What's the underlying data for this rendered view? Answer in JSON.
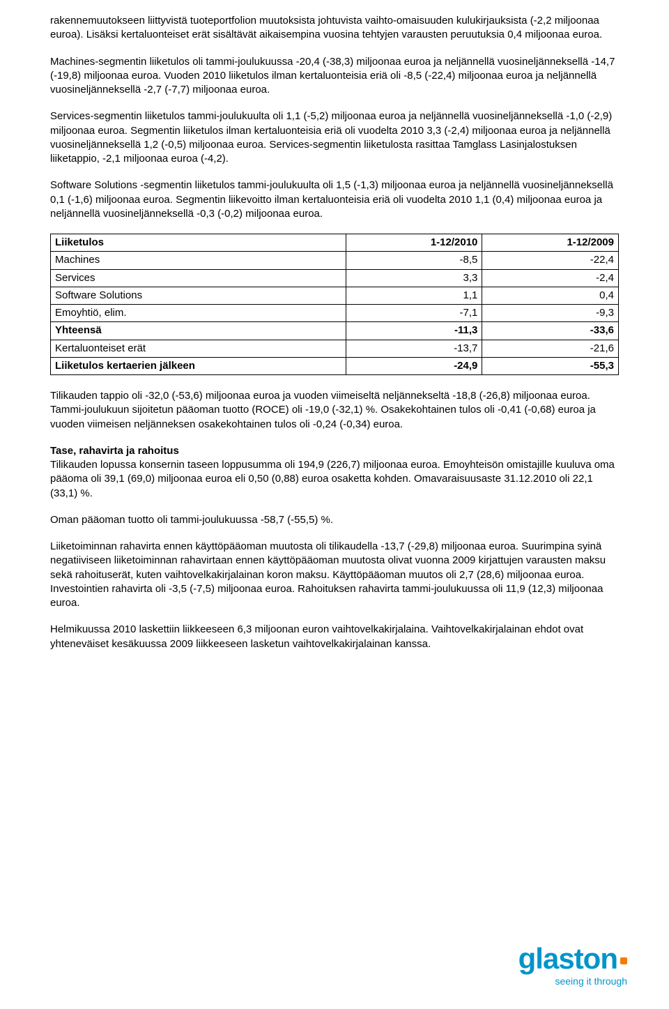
{
  "paragraphs": {
    "p1": "rakennemuutokseen liittyvistä tuoteportfolion muutoksista johtuvista vaihto-omaisuuden kulukirjauksista (-2,2 miljoonaa euroa). Lisäksi kertaluonteiset erät sisältävät aikaisempina vuosina tehtyjen varausten peruutuksia 0,4 miljoonaa euroa.",
    "p2": "Machines-segmentin liiketulos oli tammi-joulukuussa -20,4 (-38,3) miljoonaa euroa ja neljännellä vuosineljänneksellä -14,7 (-19,8) miljoonaa euroa. Vuoden 2010 liiketulos ilman kertaluonteisia eriä oli -8,5 (-22,4) miljoonaa euroa ja neljännellä vuosineljänneksellä -2,7 (-7,7) miljoonaa euroa.",
    "p3": "Services-segmentin liiketulos tammi-joulukuulta oli 1,1 (-5,2) miljoonaa euroa ja neljännellä vuosineljänneksellä -1,0 (-2,9) miljoonaa euroa. Segmentin liiketulos ilman kertaluonteisia eriä oli vuodelta 2010 3,3 (-2,4) miljoonaa euroa ja neljännellä vuosineljänneksellä 1,2 (-0,5) miljoonaa euroa. Services-segmentin liiketulosta rasittaa Tamglass Lasinjalostuksen liiketappio, -2,1 miljoonaa euroa (-4,2).",
    "p4": "Software Solutions -segmentin liiketulos tammi-joulukuulta oli 1,5 (-1,3) miljoonaa euroa ja neljännellä vuosineljänneksellä 0,1 (-1,6) miljoonaa euroa. Segmentin liikevoitto ilman kertaluonteisia eriä oli vuodelta 2010 1,1 (0,4) miljoonaa euroa ja neljännellä vuosineljänneksellä -0,3 (-0,2) miljoonaa euroa.",
    "p5": "Tilikauden tappio oli -32,0 (-53,6) miljoonaa euroa ja vuoden viimeiseltä neljännekseltä -18,8 (-26,8) miljoonaa euroa. Tammi-joulukuun sijoitetun pääoman tuotto (ROCE) oli -19,0 (-32,1) %. Osakekohtainen tulos oli -0,41 (-0,68) euroa ja vuoden viimeisen neljänneksen osakekohtainen tulos oli -0,24 (-0,34) euroa.",
    "h_tase": "Tase, rahavirta ja rahoitus",
    "p6": "Tilikauden lopussa konsernin taseen loppusumma oli 194,9 (226,7) miljoonaa euroa. Emoyhteisön omistajille kuuluva oma pääoma oli 39,1 (69,0) miljoonaa euroa eli 0,50 (0,88) euroa osaketta kohden. Omavaraisuusaste 31.12.2010 oli 22,1 (33,1) %.",
    "p7": "Oman pääoman tuotto oli tammi-joulukuussa -58,7 (-55,5) %.",
    "p8": "Liiketoiminnan rahavirta ennen käyttöpääoman muutosta oli tilikaudella -13,7 (-29,8) miljoonaa euroa. Suurimpina syinä negatiiviseen liiketoiminnan rahavirtaan ennen käyttöpääoman muutosta olivat vuonna 2009 kirjattujen varausten maksu sekä rahoituserät, kuten vaihtovelkakirjalainan koron maksu. Käyttöpääoman muutos oli 2,7 (28,6) miljoonaa euroa. Investointien rahavirta oli -3,5 (-7,5) miljoonaa euroa. Rahoituksen rahavirta tammi-joulukuussa oli 11,9 (12,3) miljoonaa euroa.",
    "p9": "Helmikuussa 2010 laskettiin liikkeeseen 6,3 miljoonan euron vaihtovelkakirjalaina. Vaihtovelkakirjalainan ehdot ovat yhteneväiset kesäkuussa 2009 liikkeeseen lasketun vaihtovelkakirjalainan kanssa."
  },
  "table": {
    "header": {
      "label": "Liiketulos",
      "col1": "1-12/2010",
      "col2": "1-12/2009"
    },
    "rows": [
      {
        "label": "Machines",
        "c1": "-8,5",
        "c2": "-22,4",
        "bold": false
      },
      {
        "label": "Services",
        "c1": "3,3",
        "c2": "-2,4",
        "bold": false
      },
      {
        "label": "Software Solutions",
        "c1": "1,1",
        "c2": "0,4",
        "bold": false
      },
      {
        "label": "Emoyhtiö, elim.",
        "c1": "-7,1",
        "c2": "-9,3",
        "bold": false
      },
      {
        "label": "Yhteensä",
        "c1": "-11,3",
        "c2": "-33,6",
        "bold": true
      },
      {
        "label": "Kertaluonteiset erät",
        "c1": "-13,7",
        "c2": "-21,6",
        "bold": false
      },
      {
        "label": "Liiketulos kertaerien jälkeen",
        "c1": "-24,9",
        "c2": "-55,3",
        "bold": true
      }
    ],
    "col_widths": [
      "52%",
      "24%",
      "24%"
    ]
  },
  "brand": {
    "name": "glaston",
    "tagline": "seeing it through",
    "brand_color": "#0095c8",
    "dot_color": "#f57c00"
  }
}
